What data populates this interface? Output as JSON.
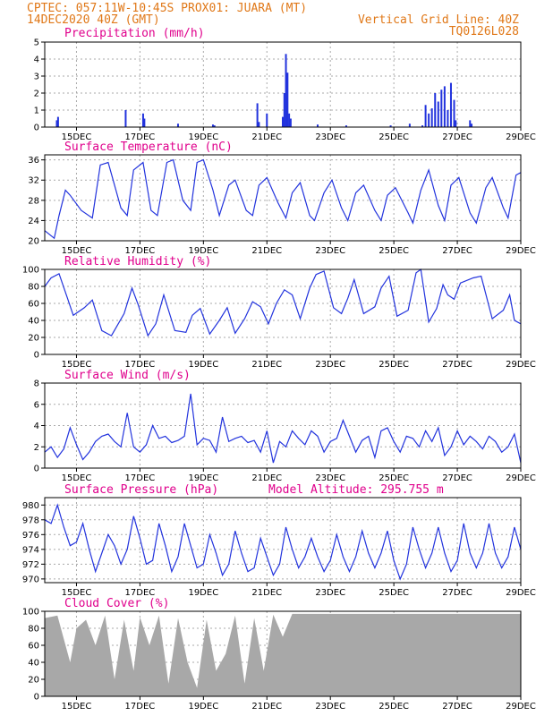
{
  "header": {
    "line1": "CPTEC:  057:11W-10:45S  PROX01: JUARA (MT)",
    "line2_left": "14DEC2020 40Z (GMT)",
    "line2_right": "Vertical Grid Line: 40Z",
    "line3_right": "TQ0126L028"
  },
  "colors": {
    "header": "#e07818",
    "title": "#e0008c",
    "line": "#2233dd",
    "cloud": "#a8a8a8",
    "frame": "#000000",
    "grid": "#aaaaaa"
  },
  "date_labels": [
    "15DEC",
    "17DEC",
    "19DEC",
    "21DEC",
    "23DEC",
    "25DEC",
    "27DEC",
    "29DEC"
  ],
  "chart_data": [
    {
      "name": "precipitation",
      "type": "bar",
      "title": "Precipitation (mm/h)",
      "ylim": [
        0,
        5
      ],
      "yticks": [
        0,
        1,
        2,
        3,
        4,
        5
      ],
      "x": [
        14.38,
        14.42,
        16.55,
        17.1,
        17.14,
        18.2,
        19.3,
        19.35,
        20.7,
        20.75,
        21.0,
        21.5,
        21.55,
        21.6,
        21.65,
        21.7,
        21.75,
        22.6,
        23.5,
        24.9,
        25.5,
        25.9,
        26.0,
        26.1,
        26.2,
        26.3,
        26.4,
        26.5,
        26.6,
        26.7,
        26.8,
        26.9,
        26.95,
        27.4,
        27.45
      ],
      "values": [
        0.4,
        0.6,
        1.0,
        0.8,
        0.5,
        0.2,
        0.15,
        0.1,
        1.4,
        0.3,
        0.8,
        0.6,
        2.0,
        4.3,
        3.2,
        0.8,
        0.5,
        0.15,
        0.1,
        0.1,
        0.2,
        0.1,
        1.3,
        0.8,
        1.1,
        2.0,
        1.5,
        2.2,
        2.4,
        1.0,
        2.6,
        1.6,
        0.4,
        0.4,
        0.2
      ]
    },
    {
      "name": "temperature",
      "type": "line",
      "title": "Surface Temperature (nC)",
      "ylim": [
        20,
        37
      ],
      "yticks": [
        20,
        24,
        28,
        32,
        36
      ],
      "x": [
        14.0,
        14.3,
        14.45,
        14.65,
        14.8,
        15.15,
        15.5,
        15.75,
        16.0,
        16.4,
        16.6,
        16.8,
        17.1,
        17.35,
        17.55,
        17.85,
        18.05,
        18.35,
        18.6,
        18.8,
        19.0,
        19.3,
        19.5,
        19.8,
        20.0,
        20.35,
        20.55,
        20.75,
        21.0,
        21.35,
        21.6,
        21.8,
        22.05,
        22.35,
        22.5,
        22.8,
        23.05,
        23.35,
        23.55,
        23.8,
        24.05,
        24.4,
        24.6,
        24.8,
        25.05,
        25.45,
        25.6,
        25.85,
        26.1,
        26.4,
        26.6,
        26.8,
        27.05,
        27.4,
        27.6,
        27.9,
        28.1,
        28.45,
        28.6,
        28.85,
        29.0
      ],
      "values": [
        22.0,
        20.5,
        25.0,
        30.0,
        29.0,
        26.0,
        24.5,
        35.0,
        35.5,
        26.5,
        25.0,
        34.0,
        35.5,
        26.0,
        25.0,
        35.5,
        36.0,
        28.0,
        26.0,
        35.5,
        36.0,
        30.0,
        25.0,
        31.0,
        32.0,
        26.0,
        25.0,
        31.0,
        32.5,
        27.5,
        24.5,
        29.5,
        31.5,
        25.0,
        24.0,
        29.5,
        32.0,
        26.5,
        24.0,
        29.5,
        31.0,
        26.0,
        24.0,
        29.0,
        30.5,
        25.5,
        23.5,
        30.0,
        34.0,
        27.0,
        24.0,
        31.0,
        32.5,
        25.5,
        23.5,
        30.5,
        32.5,
        26.5,
        24.5,
        33.0,
        33.5
      ]
    },
    {
      "name": "humidity",
      "type": "line",
      "title": "Relative Humidity (%)",
      "ylim": [
        0,
        100
      ],
      "yticks": [
        0,
        20,
        40,
        60,
        80,
        100
      ],
      "x": [
        14.0,
        14.2,
        14.45,
        14.7,
        14.9,
        15.25,
        15.5,
        15.8,
        16.1,
        16.5,
        16.75,
        16.95,
        17.25,
        17.5,
        17.75,
        18.1,
        18.45,
        18.65,
        18.9,
        19.2,
        19.5,
        19.75,
        20.0,
        20.3,
        20.55,
        20.8,
        21.05,
        21.3,
        21.55,
        21.8,
        22.05,
        22.35,
        22.55,
        22.8,
        23.1,
        23.35,
        23.55,
        23.75,
        24.05,
        24.4,
        24.6,
        24.85,
        25.1,
        25.45,
        25.7,
        25.85,
        26.1,
        26.35,
        26.55,
        26.7,
        26.9,
        27.1,
        27.5,
        27.75,
        28.1,
        28.45,
        28.65,
        28.8,
        29.0
      ],
      "values": [
        80,
        90,
        95,
        68,
        46,
        55,
        64,
        28,
        22,
        48,
        78,
        58,
        22,
        36,
        70,
        28,
        26,
        46,
        54,
        24,
        40,
        55,
        25,
        42,
        62,
        56,
        36,
        60,
        76,
        70,
        42,
        78,
        94,
        98,
        55,
        48,
        66,
        88,
        48,
        56,
        78,
        92,
        45,
        52,
        96,
        100,
        38,
        54,
        82,
        70,
        65,
        84,
        90,
        92,
        42,
        52,
        70,
        40,
        36
      ]
    },
    {
      "name": "wind",
      "type": "line",
      "title": "Surface Wind (m/s)",
      "ylim": [
        0,
        8
      ],
      "yticks": [
        0,
        2,
        4,
        6,
        8
      ],
      "x": [
        14.0,
        14.2,
        14.4,
        14.6,
        14.8,
        15.0,
        15.2,
        15.4,
        15.6,
        15.8,
        16.0,
        16.2,
        16.4,
        16.6,
        16.8,
        17.0,
        17.2,
        17.4,
        17.6,
        17.8,
        18.0,
        18.2,
        18.4,
        18.6,
        18.8,
        19.0,
        19.2,
        19.4,
        19.6,
        19.8,
        20.0,
        20.2,
        20.4,
        20.6,
        20.8,
        21.0,
        21.2,
        21.4,
        21.6,
        21.8,
        22.0,
        22.2,
        22.4,
        22.6,
        22.8,
        23.0,
        23.2,
        23.4,
        23.6,
        23.8,
        24.0,
        24.2,
        24.4,
        24.6,
        24.8,
        25.0,
        25.2,
        25.4,
        25.6,
        25.8,
        26.0,
        26.2,
        26.4,
        26.6,
        26.8,
        27.0,
        27.2,
        27.4,
        27.6,
        27.8,
        28.0,
        28.2,
        28.4,
        28.6,
        28.8,
        29.0
      ],
      "values": [
        1.5,
        2.0,
        1.0,
        1.8,
        3.8,
        2.2,
        0.8,
        1.5,
        2.5,
        3.0,
        3.2,
        2.5,
        2.0,
        5.2,
        2.0,
        1.5,
        2.2,
        4.0,
        2.8,
        3.0,
        2.4,
        2.6,
        3.0,
        7.0,
        2.2,
        2.8,
        2.6,
        1.5,
        4.8,
        2.5,
        2.8,
        3.0,
        2.4,
        2.6,
        1.5,
        3.5,
        0.5,
        2.5,
        2.0,
        3.5,
        2.8,
        2.2,
        3.5,
        3.0,
        1.5,
        2.5,
        2.8,
        4.5,
        3.0,
        1.5,
        2.6,
        3.0,
        1.0,
        3.5,
        3.8,
        2.5,
        1.5,
        3.0,
        2.8,
        2.0,
        3.5,
        2.5,
        3.8,
        1.2,
        2.0,
        3.5,
        2.2,
        3.0,
        2.5,
        1.8,
        3.0,
        2.5,
        1.5,
        2.0,
        3.2,
        0.5
      ]
    },
    {
      "name": "pressure",
      "type": "line",
      "title": "Surface Pressure (hPa)",
      "ylim": [
        969.5,
        981
      ],
      "yticks": [
        970,
        972,
        974,
        976,
        978,
        980
      ],
      "x": [
        14.0,
        14.2,
        14.4,
        14.6,
        14.8,
        15.0,
        15.2,
        15.4,
        15.6,
        15.8,
        16.0,
        16.2,
        16.4,
        16.6,
        16.8,
        17.0,
        17.2,
        17.4,
        17.6,
        17.8,
        18.0,
        18.2,
        18.4,
        18.6,
        18.8,
        19.0,
        19.2,
        19.4,
        19.6,
        19.8,
        20.0,
        20.2,
        20.4,
        20.6,
        20.8,
        21.0,
        21.2,
        21.4,
        21.6,
        21.8,
        22.0,
        22.2,
        22.4,
        22.6,
        22.8,
        23.0,
        23.2,
        23.4,
        23.6,
        23.8,
        24.0,
        24.2,
        24.4,
        24.6,
        24.8,
        25.0,
        25.2,
        25.4,
        25.6,
        25.8,
        26.0,
        26.2,
        26.4,
        26.6,
        26.8,
        27.0,
        27.2,
        27.4,
        27.6,
        27.8,
        28.0,
        28.2,
        28.4,
        28.6,
        28.8,
        29.0
      ],
      "values": [
        978.0,
        977.5,
        980.0,
        977.0,
        974.5,
        975.0,
        977.5,
        974.0,
        971.0,
        973.5,
        976.0,
        974.5,
        972.0,
        974.0,
        978.5,
        975.5,
        972.0,
        972.5,
        977.5,
        974.5,
        971.0,
        973.0,
        977.5,
        974.5,
        971.5,
        972.0,
        976.0,
        973.5,
        970.5,
        972.0,
        976.5,
        973.5,
        971.0,
        971.5,
        975.5,
        973.0,
        970.5,
        972.0,
        977.0,
        974.0,
        971.5,
        973.0,
        975.5,
        973.0,
        971.0,
        972.5,
        976.0,
        973.0,
        971.0,
        973.0,
        976.5,
        973.5,
        971.5,
        973.5,
        976.5,
        972.5,
        970.0,
        972.0,
        977.0,
        974.0,
        971.5,
        973.5,
        977.0,
        973.5,
        971.0,
        972.5,
        977.5,
        973.5,
        971.5,
        973.5,
        977.5,
        973.5,
        971.5,
        973.0,
        977.0,
        974.0
      ]
    },
    {
      "name": "cloud",
      "type": "area",
      "title": "Cloud Cover (%)",
      "ylim": [
        0,
        100
      ],
      "yticks": [
        0,
        20,
        40,
        60,
        80,
        100
      ],
      "x": [
        14.0,
        14.4,
        14.8,
        15.0,
        15.3,
        15.6,
        15.9,
        16.2,
        16.5,
        16.8,
        17.0,
        17.3,
        17.6,
        17.9,
        18.2,
        18.5,
        18.8,
        19.1,
        19.4,
        19.7,
        20.0,
        20.3,
        20.6,
        20.9,
        21.2,
        21.5,
        21.8,
        22.0,
        29.0
      ],
      "values": [
        92,
        95,
        40,
        80,
        90,
        60,
        95,
        20,
        90,
        30,
        93,
        60,
        95,
        15,
        92,
        40,
        10,
        90,
        30,
        50,
        95,
        15,
        92,
        30,
        96,
        70,
        97,
        97,
        97
      ]
    }
  ],
  "panel_extras": {
    "pressure_altitude_label": "Model Altitude: 295.755 m"
  }
}
